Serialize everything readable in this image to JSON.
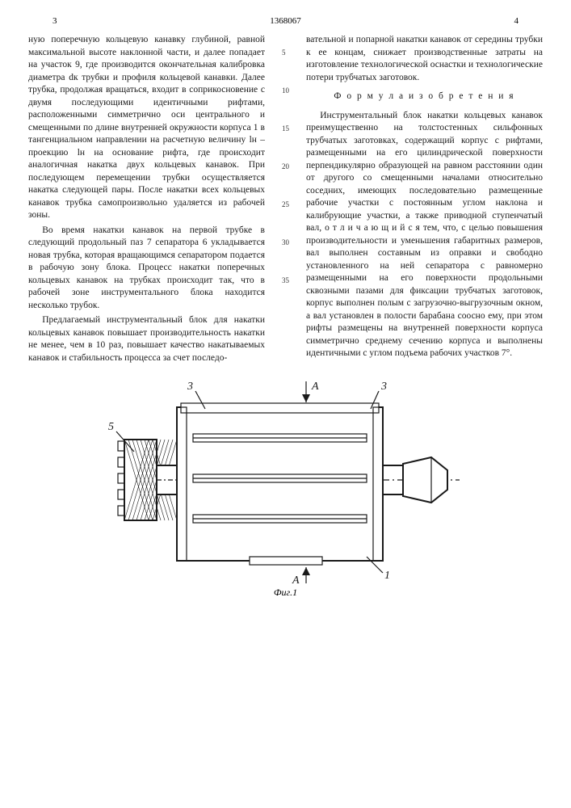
{
  "header": {
    "col_left": "3",
    "patent": "1368067",
    "col_right": "4"
  },
  "line_numbers": [
    "5",
    "10",
    "15",
    "20",
    "25",
    "30",
    "35"
  ],
  "left_column": {
    "p1": "ную поперечную кольцевую канавку глубиной, равной максимальной высоте наклонной части, и далее попадает на участок 9, где производится окончательная калибровка диаметра dк трубки и профиля кольцевой канавки. Далее трубка, продолжая вращаться, входит в соприкосновение с двумя последующими идентичными рифтами, расположенными симметрично оси центрального и смещенными по длине внутренней окружности корпуса 1 в тангенциальном направлении на расчетную величину lн – проекцию lн на основание рифта, где происходит аналогичная накатка двух кольцевых канавок. При последующем перемещении трубки осуществляется накатка следующей пары. После накатки всех кольцевых канавок трубка самопроизвольно удаляется из рабочей зоны.",
    "p2": "Во время накатки канавок на первой трубке в следующий продольный паз 7 сепаратора 6 укладывается новая трубка, которая вращающимся сепаратором подается в рабочую зону блока. Процесс накатки поперечных кольцевых канавок на трубках происходит так, что в рабочей зоне инструментального блока находится несколько трубок.",
    "p3": "Предлагаемый инструментальный блок для накатки кольцевых канавок повышает производительность накатки не менее, чем в 10 раз, повышает качество накатываемых канавок и стабильность процесса за счет последо-"
  },
  "right_column": {
    "p1": "вательной и попарной накатки канавок от середины трубки к ее концам, снижает производственные затраты на изготовление технологической оснастки и технологические потери трубчатых заготовок.",
    "formula_title": "Ф о р м у л а   и з о б р е т е н и я",
    "p2": "Инструментальный блок накатки кольцевых канавок преимущественно на толстостенных сильфонных трубчатых заготовках, содержащий корпус с рифтами, размещенными на его цилиндрической поверхности перпендикулярно образующей на равном расстоянии один от другого со смещенными началами относительно соседних, имеющих последовательно размещенные рабочие участки с постоянным углом наклона и калибрующие участки, а также приводной ступенчатый вал,  о т л и ч а ю щ и й с я  тем, что, с целью повышения производительности и уменьшения габаритных размеров, вал выполнен составным из оправки и свободно установленного на ней сепаратора с равномерно размещенными на его поверхности продольными сквозными пазами для фиксации трубчатых заготовок, корпус выполнен полым с загрузочно-выгрузочным окном, а вал установлен в полости барабана соосно ему, при этом рифты размещены на внутренней поверхности корпуса симметрично среднему сечению корпуса и выполнены идентичными с углом подъема рабочих участков 7°."
  },
  "figure": {
    "caption": "Фиг.1",
    "labels": {
      "l1": "5",
      "l2": "3",
      "l3": "3",
      "l4": "A",
      "l5": "A",
      "l6": "1"
    },
    "colors": {
      "stroke": "#1a1a1a",
      "fill_body": "#ffffff",
      "hatch": "#1a1a1a"
    },
    "stroke_width_outer": 2,
    "stroke_width_inner": 1.2
  }
}
